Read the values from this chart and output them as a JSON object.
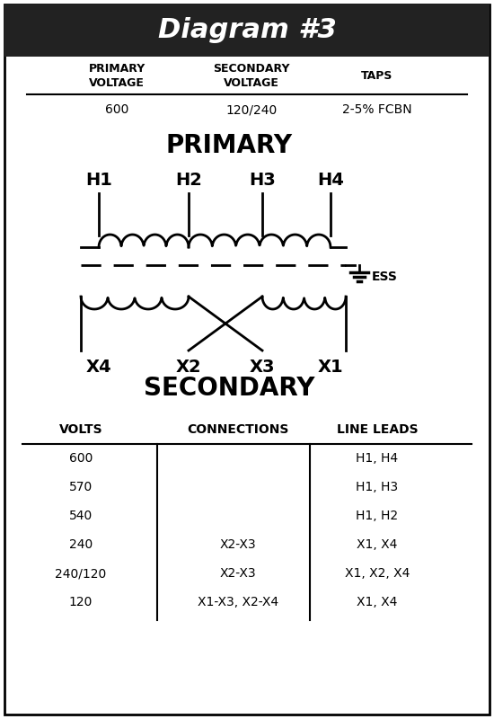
{
  "title": "Diagram #3",
  "title_bg": "#222222",
  "title_color": "#ffffff",
  "border_color": "#000000",
  "bg_color": "#ffffff",
  "top_table": {
    "headers": [
      "PRIMARY\nVOLTAGE",
      "SECONDARY\nVOLTAGE",
      "TAPS"
    ],
    "values": [
      "600",
      "120/240",
      "2-5% FCBN"
    ]
  },
  "primary_label": "PRIMARY",
  "secondary_label": "SECONDARY",
  "h_labels": [
    "H1",
    "H2",
    "H3",
    "H4"
  ],
  "x_labels": [
    "X4",
    "X2",
    "X3",
    "X1"
  ],
  "bottom_table": {
    "headers": [
      "VOLTS",
      "CONNECTIONS",
      "LINE LEADS"
    ],
    "rows": [
      [
        "600",
        "",
        "H1, H4"
      ],
      [
        "570",
        "",
        "H1, H3"
      ],
      [
        "540",
        "",
        "H1, H2"
      ],
      [
        "240",
        "X2-X3",
        "X1, X4"
      ],
      [
        "240/120",
        "X2-X3",
        "X1, X2, X4"
      ],
      [
        "120",
        "X1-X3, X2-X4",
        "X1, X4"
      ]
    ]
  }
}
